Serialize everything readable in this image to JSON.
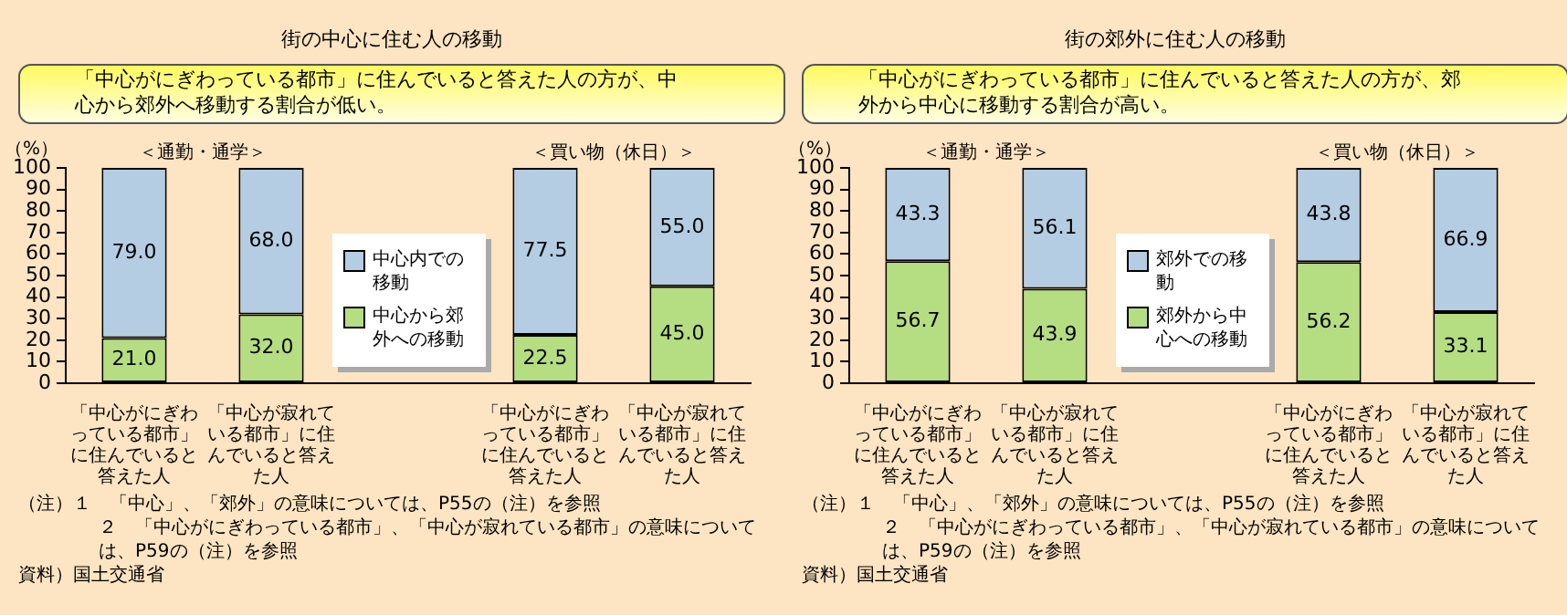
{
  "chart_data": [
    {
      "type": "bar",
      "title": "街の中心に住む人の移動",
      "subtitle": "「中心がにぎわっている都市」に住んでいると答えた人の方が、中心から郊外へ移動する割合が低い。",
      "ylabel": "（%）",
      "categories": [
        "「中心がにぎわっている都市」に住んでいると答えた人",
        "「中心が寂れている都市」に住んでいると答えた人",
        null,
        "「中心がにぎわっている都市」に住んでいると答えた人",
        "「中心が寂れている都市」に住んでいると答えた人"
      ],
      "stacked": true,
      "series": [
        {
          "name": "中心から郊外への移動",
          "color": "#b5dd82",
          "values": [
            21.0,
            32.0,
            null,
            22.5,
            45.0
          ],
          "value_labels": [
            "21.0",
            "32.0",
            null,
            "22.5",
            "45.0"
          ]
        },
        {
          "name": "中心内での移動",
          "color": "#b4cde2",
          "values": [
            79.0,
            68.0,
            null,
            77.5,
            55.0
          ],
          "value_labels": [
            "79.0",
            "68.0",
            null,
            "77.5",
            "55.0"
          ]
        }
      ],
      "ylim": [
        0,
        100
      ],
      "yticks": [
        0,
        10,
        20,
        30,
        40,
        50,
        60,
        70,
        80,
        90,
        100
      ],
      "grid": false,
      "legend": "center",
      "annotations": [
        "＜通勤・通学＞",
        "＜買い物（休日）＞",
        "（注）１　「中心」、「郊外」の意味については、P55の（注）を参照",
        "２　「中心がにぎわっている都市」、「中心が寂れている都市」の意味については、P59の（注）を参照",
        "資料）国土交通省"
      ]
    },
    {
      "type": "bar",
      "title": "街の郊外に住む人の移動",
      "subtitle": "「中心がにぎわっている都市」に住んでいると答えた人の方が、郊外から中心に移動する割合が高い。",
      "ylabel": "（%）",
      "categories": [
        "「中心がにぎわっている都市」に住んでいると答えた人",
        "「中心が寂れている都市」に住んでいると答えた人",
        null,
        "「中心がにぎわっている都市」に住んでいると答えた人",
        "「中心が寂れている都市」に住んでいると答えた人"
      ],
      "stacked": true,
      "series": [
        {
          "name": "郊外から中心への移動",
          "color": "#b5dd82",
          "values": [
            56.7,
            43.9,
            null,
            56.2,
            33.1
          ],
          "value_labels": [
            "56.7",
            "43.9",
            null,
            "56.2",
            "33.1"
          ]
        },
        {
          "name": "郊外での移動",
          "color": "#b4cde2",
          "values": [
            43.3,
            56.1,
            null,
            43.8,
            66.9
          ],
          "value_labels": [
            "43.3",
            "56.1",
            null,
            "43.8",
            "66.9"
          ]
        }
      ],
      "ylim": [
        0,
        100
      ],
      "yticks": [
        0,
        10,
        20,
        30,
        40,
        50,
        60,
        70,
        80,
        90,
        100
      ],
      "grid": false,
      "legend": "center",
      "annotations": [
        "＜通勤・通学＞",
        "＜買い物（休日）＞",
        "（注）１　「中心」、「郊外」の意味については、P55の（注）を参照",
        "２　「中心がにぎわっている都市」、「中心が寂れている都市」の意味については、P59の（注）を参照",
        "資料）国土交通省"
      ]
    }
  ]
}
